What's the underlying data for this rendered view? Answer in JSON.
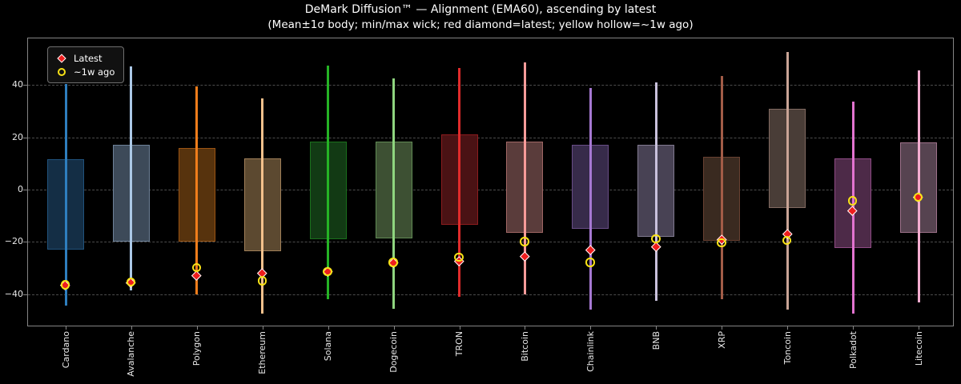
{
  "title": "DeMark Diffusion™ — Alignment (EMA60), ascending by latest",
  "subtitle": "(Mean±1σ body; min/max wick; red diamond=latest; yellow hollow=~1w ago)",
  "legend": {
    "latest_label": "Latest",
    "week_ago_label": "~1w ago"
  },
  "colors": {
    "background": "#000000",
    "text": "#ffffff",
    "tick_text": "#e8e8e8",
    "grid": "#4c4c4c",
    "spine": "#858585",
    "latest_marker_fill": "#ee1d1d",
    "marker_edge": "#ffffff",
    "week_ago_ring": "#f8e216"
  },
  "chart_data": {
    "type": "bar",
    "subtype": "range_candlestick_with_markers",
    "title": "DeMark Diffusion™ — Alignment (EMA60), ascending by latest",
    "xlabel": "",
    "ylabel": "",
    "ylim": [
      -52.3,
      58.1
    ],
    "yticks": [
      -40,
      -20,
      0,
      20,
      40
    ],
    "ytick_labels": [
      "−40",
      "−20",
      "0",
      "20",
      "40"
    ],
    "grid": true,
    "legend_position": "upper left",
    "categories": [
      "Cardano",
      "Avalanche",
      "Polygon",
      "Ethereum",
      "Solana",
      "Dogecoin",
      "TRON",
      "Bitcoin",
      "Chainlink",
      "BNB",
      "XRP",
      "Toncoin",
      "Polkadot",
      "Litecoin"
    ],
    "series": [
      {
        "name": "body_high_mean_plus_1sigma",
        "values": [
          11.5,
          17,
          16,
          12,
          18.5,
          18.5,
          21,
          18.5,
          17,
          17,
          12.5,
          31,
          12,
          18
        ]
      },
      {
        "name": "body_low_mean_minus_1sigma",
        "values": [
          -23,
          -20,
          -20,
          -23.5,
          -19,
          -18.5,
          -13.5,
          -16.5,
          -15,
          -18,
          -19.5,
          -7,
          -22.5,
          -16.5
        ]
      },
      {
        "name": "wick_high_max",
        "values": [
          40.5,
          47,
          39.5,
          35,
          47.5,
          42.5,
          46.5,
          48.5,
          39,
          41,
          43.5,
          52.5,
          33.5,
          45.5
        ]
      },
      {
        "name": "wick_low_min",
        "values": [
          -44.5,
          -38.5,
          -40,
          -47.5,
          -42,
          -45.5,
          -41,
          -40,
          -46,
          -42.5,
          -42,
          -46,
          -47.5,
          -43
        ]
      },
      {
        "name": "latest_red_diamond",
        "values": [
          -36.5,
          -35.5,
          -33,
          -32,
          -31.5,
          -28,
          -27.5,
          -25.5,
          -23,
          -22,
          -19,
          -17,
          -8,
          -3
        ]
      },
      {
        "name": "week_ago_yellow_hollow",
        "values": [
          -36.5,
          -35.5,
          -30,
          -35,
          -31.5,
          -28,
          -26,
          -20,
          -28,
          -19,
          -20.5,
          -19.5,
          -4.5,
          -3
        ]
      }
    ],
    "item_colors": [
      {
        "wick": "#2e7ebe",
        "body": "#142e45"
      },
      {
        "wick": "#abc8e6",
        "body": "#3d4a59"
      },
      {
        "wick": "#f07d1b",
        "body": "#57330d"
      },
      {
        "wick": "#f3c18c",
        "body": "#5c4930"
      },
      {
        "wick": "#25b325",
        "body": "#123a14"
      },
      {
        "wick": "#8fd57f",
        "body": "#3d5033"
      },
      {
        "wick": "#e02b2b",
        "body": "#4a1214"
      },
      {
        "wick": "#f79b99",
        "body": "#5a3c3b"
      },
      {
        "wick": "#a678d2",
        "body": "#372b4a"
      },
      {
        "wick": "#c9c1dc",
        "body": "#484254"
      },
      {
        "wick": "#a25c47",
        "body": "#3a2a20"
      },
      {
        "wick": "#c9a496",
        "body": "#493d37"
      },
      {
        "wick": "#e273d0",
        "body": "#4d2a48"
      },
      {
        "wick": "#f5add0",
        "body": "#564350"
      }
    ]
  }
}
